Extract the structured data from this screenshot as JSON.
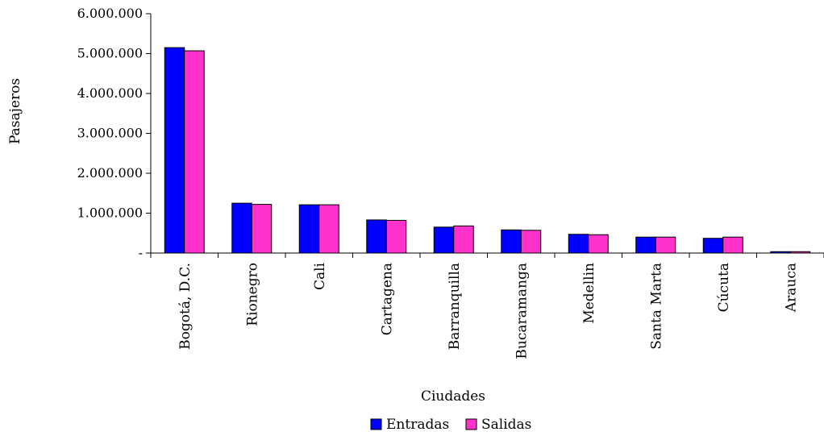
{
  "chart_data": {
    "type": "bar",
    "title": "",
    "xlabel": "Ciudades",
    "ylabel": "Pasajeros",
    "ylim": [
      0,
      6000000
    ],
    "yticks": [
      {
        "value": 0,
        "label": "-"
      },
      {
        "value": 1000000,
        "label": "1.000.000"
      },
      {
        "value": 2000000,
        "label": "2.000.000"
      },
      {
        "value": 3000000,
        "label": "3.000.000"
      },
      {
        "value": 4000000,
        "label": "4.000.000"
      },
      {
        "value": 5000000,
        "label": "5.000.000"
      },
      {
        "value": 6000000,
        "label": "6.000.000"
      }
    ],
    "categories": [
      "Bogotá, D.C.",
      "Rionegro",
      "Cali",
      "Cartagena",
      "Barranquilla",
      "Bucaramanga",
      "Medellin",
      "Santa Marta",
      "Cúcuta",
      "Arauca"
    ],
    "series": [
      {
        "name": "Entradas",
        "color": "#0000ff",
        "values": [
          5150000,
          1250000,
          1210000,
          830000,
          650000,
          580000,
          470000,
          400000,
          370000,
          35000
        ]
      },
      {
        "name": "Salidas",
        "color": "#ff33cc",
        "values": [
          5070000,
          1220000,
          1210000,
          820000,
          680000,
          570000,
          460000,
          400000,
          400000,
          35000
        ]
      }
    ],
    "grid": false,
    "legend_position": "bottom"
  }
}
